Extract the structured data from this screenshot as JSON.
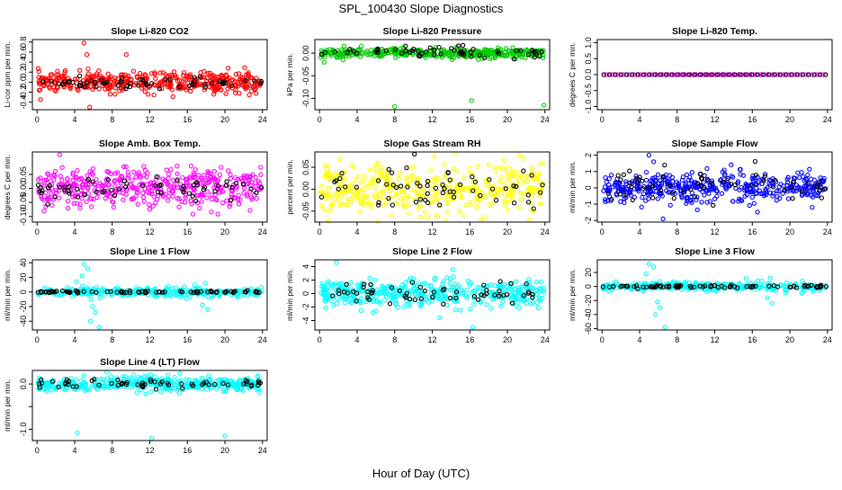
{
  "page": {
    "title": "SPL_100430  Slope Diagnostics",
    "xlabel": "Hour of Day (UTC)"
  },
  "chart_data": [
    {
      "id": "co2",
      "type": "scatter",
      "title": "Slope Li-820 CO2",
      "ylabel": "Li-cor ppm per min.",
      "xlim": [
        -0.5,
        24.5
      ],
      "xticks": [
        0,
        4,
        8,
        12,
        16,
        20,
        24
      ],
      "yticks": [
        -0.4,
        -0.2,
        0.0,
        0.2,
        0.4,
        0.6,
        0.8
      ],
      "ytick_labels": [
        "-0.4",
        "-0.2",
        "0.0",
        "0.2",
        "0.4",
        "0.6",
        "0.8"
      ],
      "ylim": [
        -0.55,
        0.85
      ],
      "color": "#ff0000",
      "series": [
        {
          "kind": "cloud",
          "color": "#ff0000",
          "count": 420,
          "center": 0.0,
          "spread": 0.1
        },
        {
          "kind": "cloud",
          "color": "#000000",
          "count": 60,
          "center": -0.02,
          "spread": 0.06
        },
        {
          "kind": "points",
          "color": "#ff0000",
          "x": [
            5.0,
            5.3,
            9.5,
            5.6
          ],
          "y": [
            0.78,
            0.55,
            0.55,
            -0.5
          ]
        }
      ]
    },
    {
      "id": "pressure",
      "type": "scatter",
      "title": "Slope Li-820 Pressure",
      "ylabel": "kPa per min.",
      "xlim": [
        -0.5,
        24.5
      ],
      "xticks": [
        0,
        4,
        8,
        12,
        16,
        20,
        24
      ],
      "yticks": [
        0.0,
        -0.05,
        -0.1
      ],
      "ytick_labels": [
        "0.00",
        "-0.05",
        "-0.10"
      ],
      "ylim": [
        -0.125,
        0.03
      ],
      "series": [
        {
          "kind": "cloud",
          "color": "#00cc00",
          "count": 420,
          "center": 0.0,
          "spread": 0.005
        },
        {
          "kind": "cloud",
          "color": "#000000",
          "count": 60,
          "center": 0.003,
          "spread": 0.006
        },
        {
          "kind": "points",
          "color": "#00cc00",
          "x": [
            8.0,
            16.2,
            23.9,
            0.5,
            2.5
          ],
          "y": [
            -0.118,
            -0.105,
            -0.115,
            -0.02,
            -0.015
          ]
        }
      ]
    },
    {
      "id": "temp",
      "type": "scatter",
      "title": "Slope Li-820 Temp.",
      "ylabel": "degrees C per min.",
      "xlim": [
        -0.5,
        24.5
      ],
      "xticks": [
        0,
        4,
        8,
        12,
        16,
        20,
        24
      ],
      "yticks": [
        -1.0,
        -0.5,
        0.0,
        0.5,
        1.0
      ],
      "ytick_labels": [
        "-1.0",
        "-0.5",
        "0.0",
        "0.5",
        "1.0"
      ],
      "ylim": [
        -1.1,
        1.1
      ],
      "series": [
        {
          "kind": "flat",
          "color": "#ff00ff",
          "count": 80,
          "center": 0.0,
          "spread": 0.0
        },
        {
          "kind": "flat",
          "color": "#000000",
          "count": 40,
          "center": 0.0,
          "spread": 0.0
        }
      ]
    },
    {
      "id": "ambbox",
      "type": "scatter",
      "title": "Slope Amb. Box Temp.",
      "ylabel": "degrees C per min.",
      "xlim": [
        -0.5,
        24.5
      ],
      "xticks": [
        0,
        4,
        8,
        12,
        16,
        20,
        24
      ],
      "yticks": [
        -0.1,
        -0.05,
        0.0,
        0.05
      ],
      "ytick_labels": [
        "-0.10",
        "-0.05",
        "0.00",
        "0.05"
      ],
      "ylim": [
        -0.12,
        0.13
      ],
      "series": [
        {
          "kind": "cloud",
          "color": "#ff00ff",
          "count": 420,
          "center": 0.0,
          "spread": 0.035
        },
        {
          "kind": "cloud",
          "color": "#000000",
          "count": 60,
          "center": 0.0,
          "spread": 0.02
        },
        {
          "kind": "points",
          "color": "#ff00ff",
          "x": [
            2.4
          ],
          "y": [
            0.12
          ]
        }
      ]
    },
    {
      "id": "rh",
      "type": "scatter",
      "title": "Slope Gas Stream RH",
      "ylabel": "percent per min.",
      "xlim": [
        -0.5,
        24.5
      ],
      "xticks": [
        0,
        4,
        8,
        12,
        16,
        20,
        24
      ],
      "yticks": [
        -0.05,
        0.0,
        0.05
      ],
      "ytick_labels": [
        "-0.05",
        "0.00",
        "0.05"
      ],
      "ylim": [
        -0.075,
        0.085
      ],
      "series": [
        {
          "kind": "cloud",
          "color": "#ffff00",
          "count": 420,
          "center": 0.0,
          "spread": 0.03
        },
        {
          "kind": "cloud",
          "color": "#000000",
          "count": 60,
          "center": 0.0,
          "spread": 0.025
        },
        {
          "kind": "points",
          "color": "#000000",
          "x": [
            10.1
          ],
          "y": [
            0.08
          ]
        }
      ]
    },
    {
      "id": "sample",
      "type": "scatter",
      "title": "Slope Sample Flow",
      "ylabel": "ml/min per min.",
      "xlim": [
        -0.5,
        24.5
      ],
      "xticks": [
        0,
        4,
        8,
        12,
        16,
        20,
        24
      ],
      "yticks": [
        -2,
        -1,
        0,
        1,
        2
      ],
      "ytick_labels": [
        "-2",
        "-1",
        "0",
        "1",
        "2"
      ],
      "ylim": [
        -2.1,
        2.2
      ],
      "series": [
        {
          "kind": "cloud",
          "color": "#0000ff",
          "count": 420,
          "center": 0.0,
          "spread": 0.45
        },
        {
          "kind": "cloud",
          "color": "#000000",
          "count": 60,
          "center": 0.2,
          "spread": 0.5
        },
        {
          "kind": "points",
          "color": "#0000ff",
          "x": [
            5.0,
            6.5,
            5.5
          ],
          "y": [
            2.0,
            -1.9,
            1.6
          ]
        }
      ]
    },
    {
      "id": "line1",
      "type": "scatter",
      "title": "Slope Line 1 Flow",
      "ylabel": "ml/min per min.",
      "xlim": [
        -0.5,
        24.5
      ],
      "xticks": [
        0,
        4,
        8,
        12,
        16,
        20,
        24
      ],
      "yticks": [
        -40,
        -20,
        0,
        20,
        40
      ],
      "ytick_labels": [
        "-40",
        "-20",
        "0",
        "20",
        "40"
      ],
      "ylim": [
        -52,
        44
      ],
      "series": [
        {
          "kind": "cloud",
          "color": "#00ffff",
          "count": 300,
          "center": 0.0,
          "spread": 3
        },
        {
          "kind": "points",
          "color": "#00ffff",
          "x": [
            5.0,
            5.4,
            5.9,
            6.2,
            4.8,
            6.6,
            17.6,
            18.2,
            18.6,
            17.9,
            16.8,
            4.2,
            5.7
          ],
          "y": [
            38,
            32,
            -20,
            -28,
            22,
            -48,
            -18,
            -24,
            -8,
            12,
            10,
            14,
            -40
          ]
        },
        {
          "kind": "cloud",
          "color": "#000000",
          "count": 80,
          "center": 0.0,
          "spread": 0.8
        }
      ]
    },
    {
      "id": "line2",
      "type": "scatter",
      "title": "Slope Line 2 Flow",
      "ylabel": "ml/min per min.",
      "xlim": [
        -0.5,
        24.5
      ],
      "xticks": [
        0,
        4,
        8,
        12,
        16,
        20,
        24
      ],
      "yticks": [
        -4,
        -2,
        0,
        2,
        4
      ],
      "ytick_labels": [
        "-4",
        "-2",
        "0",
        "2",
        "4"
      ],
      "ylim": [
        -5.4,
        5.0
      ],
      "series": [
        {
          "kind": "cloud",
          "color": "#00ffff",
          "count": 420,
          "center": 0.0,
          "spread": 1.0
        },
        {
          "kind": "cloud",
          "color": "#000000",
          "count": 60,
          "center": 0.0,
          "spread": 0.8
        },
        {
          "kind": "points",
          "color": "#00ffff",
          "x": [
            1.8,
            16.3,
            12.8,
            6.0
          ],
          "y": [
            4.6,
            -5.0,
            -3.6,
            -2.6
          ]
        }
      ]
    },
    {
      "id": "line3",
      "type": "scatter",
      "title": "Slope Line 3 Flow",
      "ylabel": "ml/min per min.",
      "xlim": [
        -0.5,
        24.5
      ],
      "xticks": [
        0,
        4,
        8,
        12,
        16,
        20,
        24
      ],
      "yticks": [
        -60,
        -40,
        -20,
        0,
        20
      ],
      "ytick_labels": [
        "-60",
        "-40",
        "-20",
        "0",
        "20"
      ],
      "ylim": [
        -62,
        38
      ],
      "series": [
        {
          "kind": "cloud",
          "color": "#00ffff",
          "count": 300,
          "center": 0.0,
          "spread": 3
        },
        {
          "kind": "points",
          "color": "#00ffff",
          "x": [
            5.0,
            5.5,
            5.9,
            6.2,
            4.7,
            6.7,
            17.6,
            18.1,
            18.5,
            17.9,
            16.6,
            5.7
          ],
          "y": [
            32,
            28,
            -22,
            -30,
            18,
            -58,
            -16,
            -24,
            -6,
            12,
            8,
            -40
          ]
        },
        {
          "kind": "cloud",
          "color": "#000000",
          "count": 80,
          "center": 0.0,
          "spread": 1.0
        }
      ]
    },
    {
      "id": "line4",
      "type": "scatter",
      "title": "Slope Line 4 (LT) Flow",
      "ylabel": "ml/min per min.",
      "xlim": [
        -0.5,
        24.5
      ],
      "xticks": [
        0,
        4,
        8,
        12,
        16,
        20,
        24
      ],
      "yticks": [
        -1.0,
        -0.5,
        0.0
      ],
      "ytick_labels": [
        "-1.0",
        "",
        "0.0"
      ],
      "ylim": [
        -1.25,
        0.3
      ],
      "series": [
        {
          "kind": "cloud",
          "color": "#00ffff",
          "count": 420,
          "center": 0.0,
          "spread": 0.08
        },
        {
          "kind": "cloud",
          "color": "#000000",
          "count": 60,
          "center": 0.0,
          "spread": 0.05
        },
        {
          "kind": "points",
          "color": "#00ffff",
          "x": [
            4.3,
            12.2,
            20.0,
            5.0
          ],
          "y": [
            -1.08,
            -1.2,
            -1.15,
            0.18
          ]
        }
      ]
    }
  ]
}
